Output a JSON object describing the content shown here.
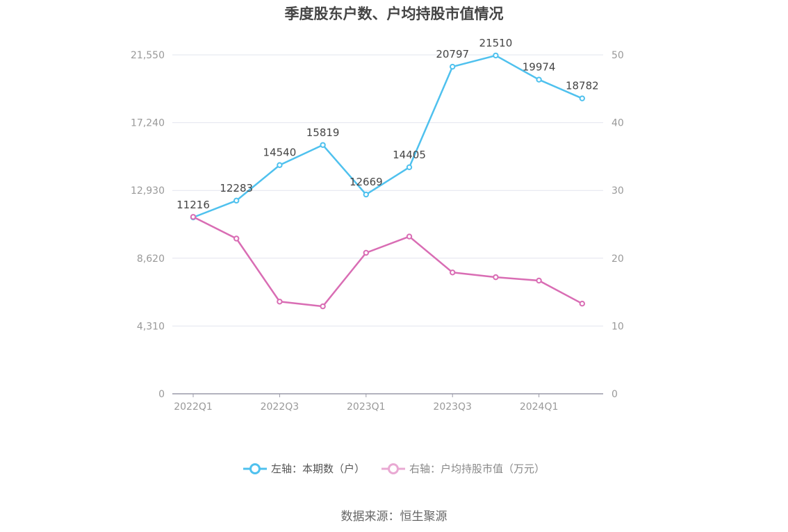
{
  "chart_data": {
    "type": "line",
    "title": "季度股东户数、户均持股市值情况",
    "categories": [
      "2022Q1",
      "2022Q2",
      "2022Q3",
      "2022Q4",
      "2023Q1",
      "2023Q2",
      "2023Q3",
      "2023Q4",
      "2024Q1",
      "2024Q2"
    ],
    "x_tick_labels": [
      "2022Q1",
      "2022Q3",
      "2023Q1",
      "2023Q3",
      "2024Q1"
    ],
    "left_axis": {
      "ylim": [
        0,
        21550
      ],
      "ticks": [
        "0",
        "4,310",
        "8,620",
        "12,930",
        "17,240",
        "21,550"
      ]
    },
    "right_axis": {
      "ylim": [
        0,
        50
      ],
      "ticks": [
        "0",
        "10",
        "20",
        "30",
        "40",
        "50"
      ]
    },
    "grid": true,
    "legend_position": "bottom",
    "series": [
      {
        "name": "左轴：本期数（户）",
        "axis": "left",
        "color": "#4fc1ee",
        "values": [
          11216,
          12283,
          14540,
          15819,
          12669,
          14405,
          20797,
          21510,
          19974,
          18782
        ],
        "show_labels": true
      },
      {
        "name": "右轴：户均持股市值（万元）",
        "axis": "right",
        "color": "#d96db4",
        "values": [
          26.1,
          22.9,
          13.6,
          12.9,
          20.8,
          23.2,
          17.9,
          17.2,
          16.7,
          13.3
        ],
        "show_labels": false
      }
    ]
  },
  "source_note": "数据来源：恒生聚源"
}
